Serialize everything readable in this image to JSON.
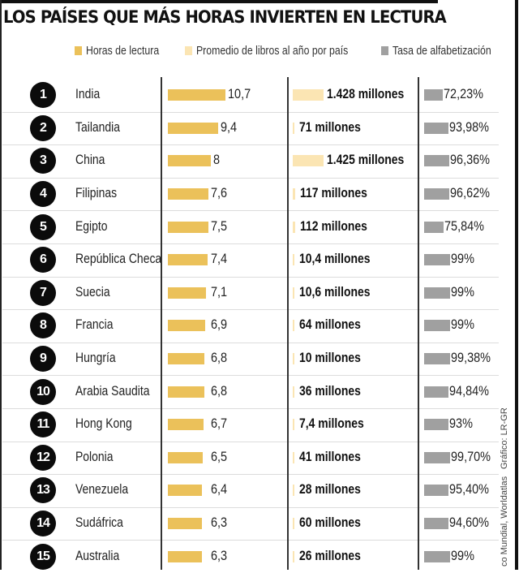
{
  "title": "LOS PAÍSES QUE MÁS HORAS INVIERTEN EN LECTURA",
  "legend": [
    {
      "label": "Horas de lectura",
      "color": "#ebc15a"
    },
    {
      "label": "Promedio de libros al año por país",
      "color": "#fbe5b3"
    },
    {
      "label": "Tasa de alfabetización",
      "color": "#a0a0a0"
    }
  ],
  "credits": {
    "source": "co Mundial, Worldatlas",
    "graphic": "Gráfico: LR-GR"
  },
  "chart_data": {
    "type": "table",
    "title": "LOS PAÍSES QUE MÁS HORAS INVIERTEN EN LECTURA",
    "columns": [
      "Horas de lectura",
      "Promedio de libros al año por país",
      "Tasa de alfabetización"
    ],
    "rows": [
      {
        "rank": "1",
        "country": "India",
        "hours": 10.7,
        "hours_label": "10,7",
        "books_millions": 1428,
        "books_label": "1.428 millones",
        "literacy": 72.23,
        "literacy_label": "72,23%"
      },
      {
        "rank": "2",
        "country": "Tailandia",
        "hours": 9.4,
        "hours_label": "9,4",
        "books_millions": 71,
        "books_label": "71 millones",
        "literacy": 93.98,
        "literacy_label": "93,98%"
      },
      {
        "rank": "3",
        "country": "China",
        "hours": 8,
        "hours_label": "8",
        "books_millions": 1425,
        "books_label": "1.425 millones",
        "literacy": 96.36,
        "literacy_label": "96,36%"
      },
      {
        "rank": "4",
        "country": "Filipinas",
        "hours": 7.6,
        "hours_label": "7,6",
        "books_millions": 117,
        "books_label": "117 millones",
        "literacy": 96.62,
        "literacy_label": "96,62%"
      },
      {
        "rank": "5",
        "country": "Egipto",
        "hours": 7.5,
        "hours_label": "7,5",
        "books_millions": 112,
        "books_label": "112 millones",
        "literacy": 75.84,
        "literacy_label": "75,84%"
      },
      {
        "rank": "6",
        "country": "República Checa",
        "hours": 7.4,
        "hours_label": "7,4",
        "books_millions": 10.4,
        "books_label": "10,4 millones",
        "literacy": 99,
        "literacy_label": "99%"
      },
      {
        "rank": "7",
        "country": "Suecia",
        "hours": 7.1,
        "hours_label": "7,1",
        "books_millions": 10.6,
        "books_label": "10,6 millones",
        "literacy": 99,
        "literacy_label": "99%"
      },
      {
        "rank": "8",
        "country": "Francia",
        "hours": 6.9,
        "hours_label": "6,9",
        "books_millions": 64,
        "books_label": "64 millones",
        "literacy": 99,
        "literacy_label": "99%"
      },
      {
        "rank": "9",
        "country": "Hungría",
        "hours": 6.8,
        "hours_label": "6,8",
        "books_millions": 10,
        "books_label": "10 millones",
        "literacy": 99.38,
        "literacy_label": "99,38%"
      },
      {
        "rank": "10",
        "country": "Arabia Saudita",
        "hours": 6.8,
        "hours_label": "6,8",
        "books_millions": 36,
        "books_label": "36 millones",
        "literacy": 94.84,
        "literacy_label": "94,84%"
      },
      {
        "rank": "11",
        "country": "Hong Kong",
        "hours": 6.7,
        "hours_label": "6,7",
        "books_millions": 7.4,
        "books_label": "7,4 millones",
        "literacy": 93,
        "literacy_label": "93%"
      },
      {
        "rank": "12",
        "country": "Polonia",
        "hours": 6.5,
        "hours_label": "6,5",
        "books_millions": 41,
        "books_label": "41 millones",
        "literacy": 99.7,
        "literacy_label": "99,70%"
      },
      {
        "rank": "13",
        "country": "Venezuela",
        "hours": 6.4,
        "hours_label": "6,4",
        "books_millions": 28,
        "books_label": "28 millones",
        "literacy": 95.4,
        "literacy_label": "95,40%"
      },
      {
        "rank": "14",
        "country": "Sudáfrica",
        "hours": 6.3,
        "hours_label": "6,3",
        "books_millions": 60,
        "books_label": "60 millones",
        "literacy": 94.6,
        "literacy_label": "94,60%"
      },
      {
        "rank": "15",
        "country": "Australia",
        "hours": 6.3,
        "hours_label": "6,3",
        "books_millions": 26,
        "books_label": "26 millones",
        "literacy": 99,
        "literacy_label": "99%"
      }
    ]
  }
}
